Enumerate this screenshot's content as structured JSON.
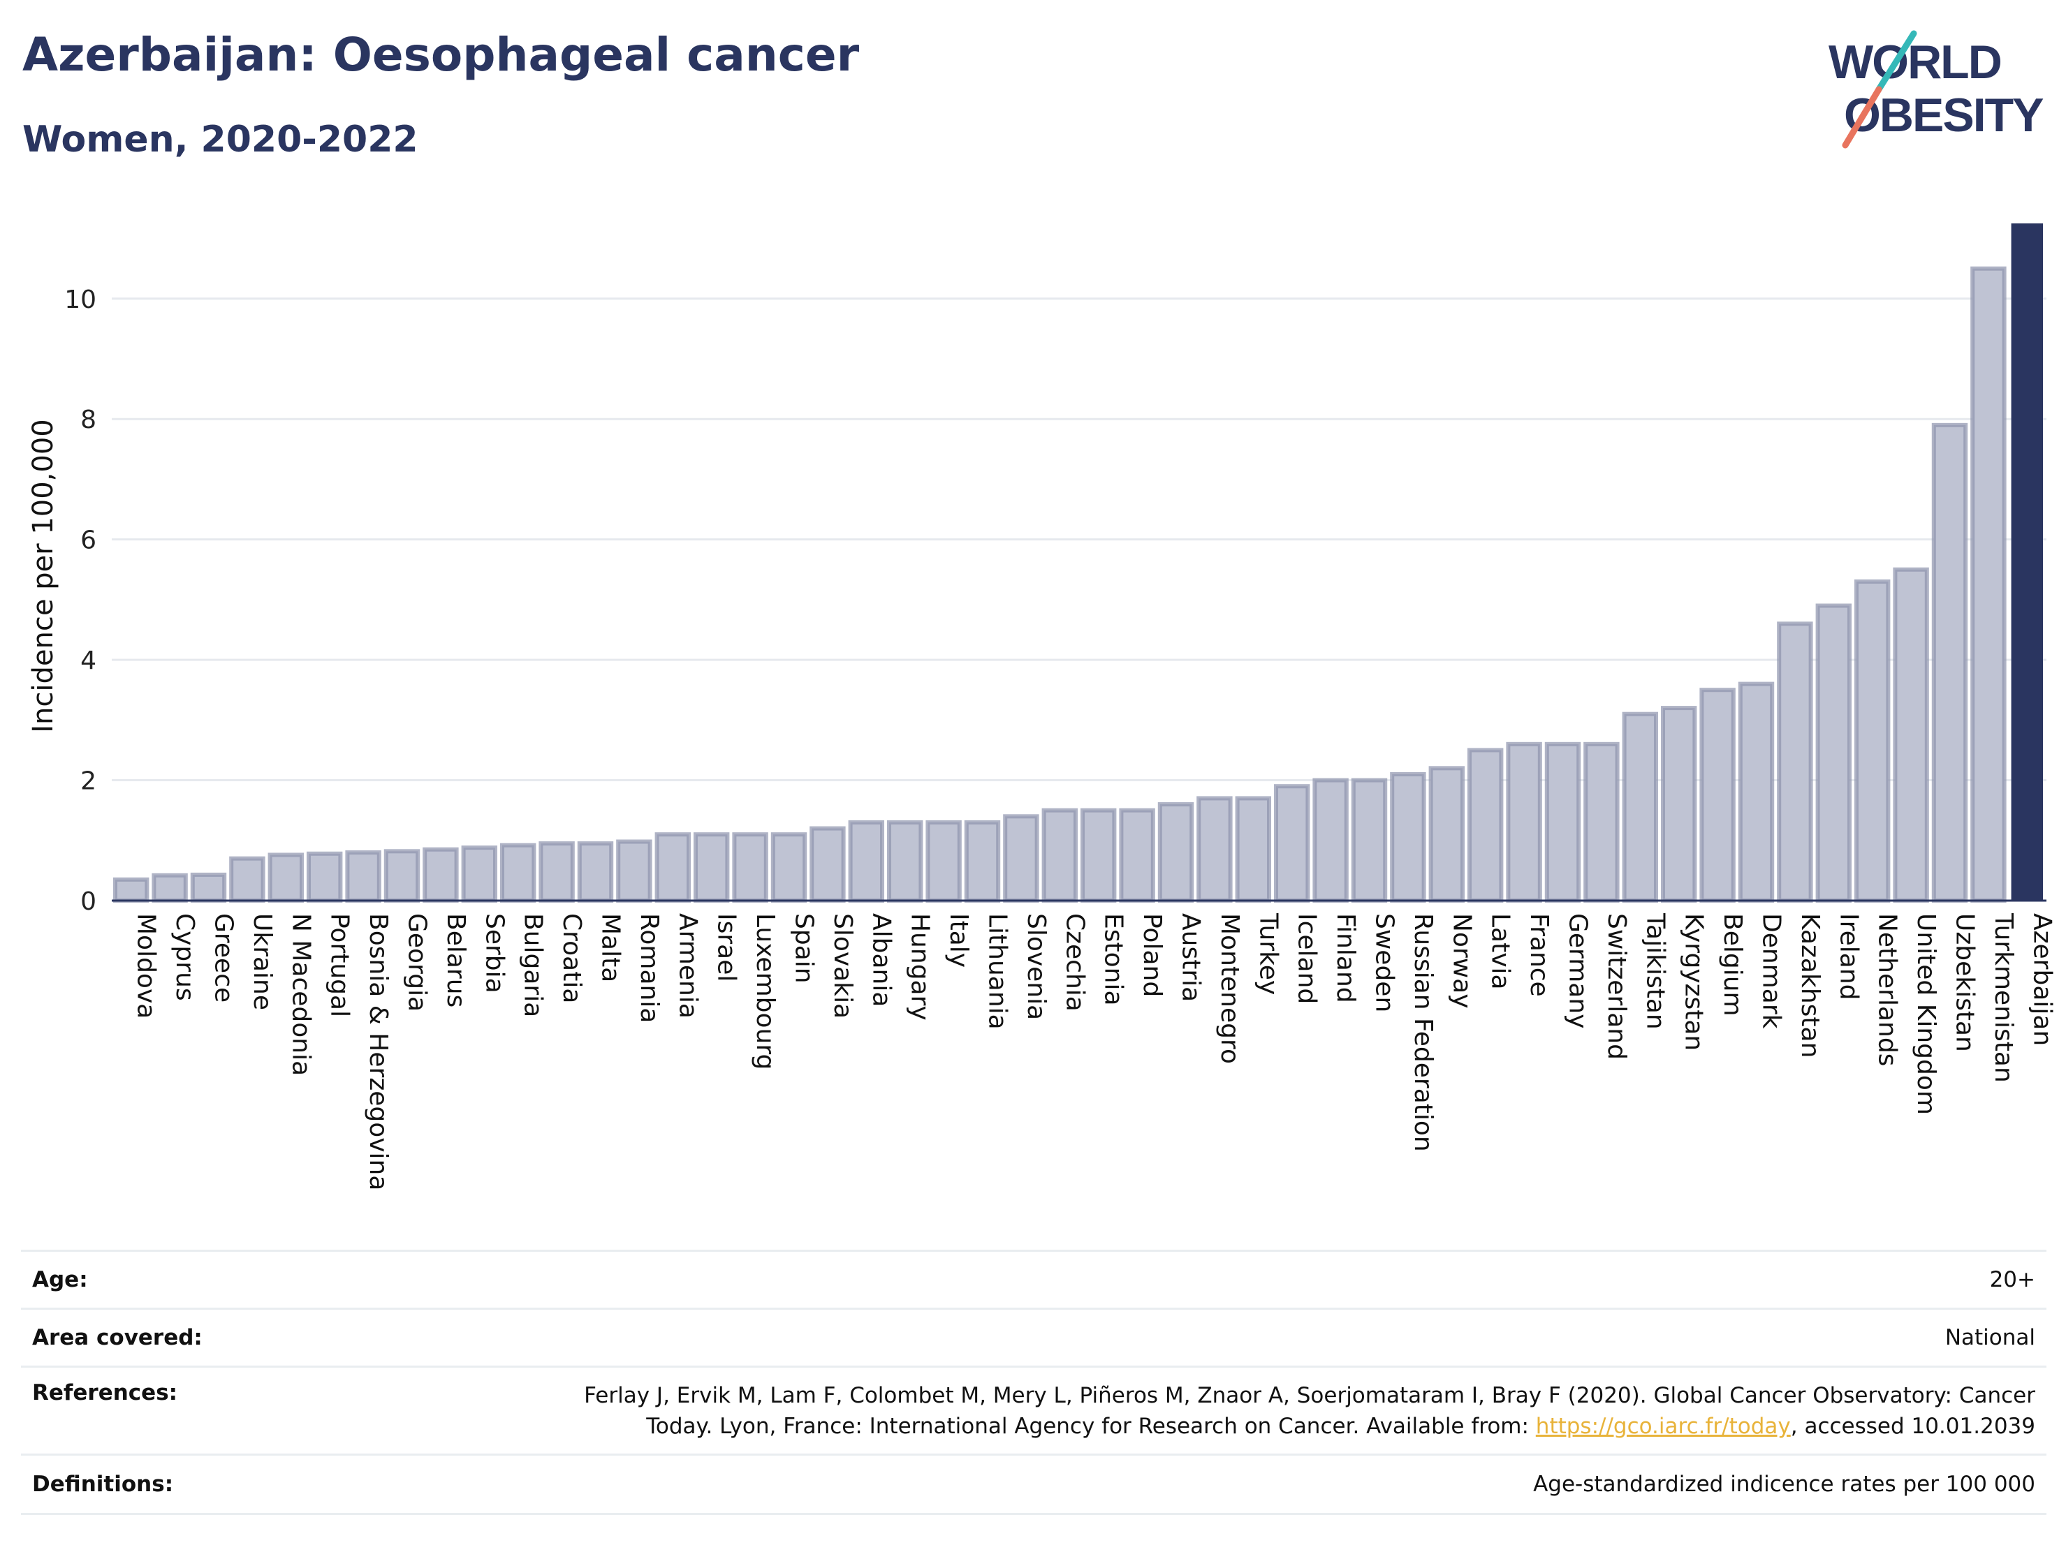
{
  "header": {
    "title": "Azerbaijan: Oesophageal cancer",
    "subtitle": "Women, 2020-2022"
  },
  "logo": {
    "line1": "WORLD",
    "line2": "OBESITY",
    "accent_teal": "#35b8b8",
    "accent_coral": "#e8745e"
  },
  "colors": {
    "bar": "#bfc3d3",
    "bar_stroke": "#8d93ac",
    "highlight": "#2a3560",
    "grid": "#e6e9ee"
  },
  "chart_data": {
    "type": "bar",
    "ylabel": "Incidence per 100,000",
    "ylim": [
      0,
      11.25
    ],
    "yticks": [
      0,
      2,
      4,
      6,
      8,
      10
    ],
    "grid": true,
    "highlight": "Azerbaijan",
    "categories": [
      "Moldova",
      "Cyprus",
      "Greece",
      "Ukraine",
      "N Macedonia",
      "Portugal",
      "Bosnia & Herzegovina",
      "Georgia",
      "Belarus",
      "Serbia",
      "Bulgaria",
      "Croatia",
      "Malta",
      "Romania",
      "Armenia",
      "Israel",
      "Luxembourg",
      "Spain",
      "Slovakia",
      "Albania",
      "Hungary",
      "Italy",
      "Lithuania",
      "Slovenia",
      "Czechia",
      "Estonia",
      "Poland",
      "Austria",
      "Montenegro",
      "Turkey",
      "Iceland",
      "Finland",
      "Sweden",
      "Russian Federation",
      "Norway",
      "Latvia",
      "France",
      "Germany",
      "Switzerland",
      "Tajikistan",
      "Kyrgyzstan",
      "Belgium",
      "Denmark",
      "Kazakhstan",
      "Ireland",
      "Netherlands",
      "United Kingdom",
      "Uzbekistan",
      "Turkmenistan",
      "Azerbaijan"
    ],
    "values": [
      0.35,
      0.42,
      0.43,
      0.7,
      0.76,
      0.78,
      0.8,
      0.82,
      0.85,
      0.88,
      0.92,
      0.95,
      0.95,
      0.98,
      1.1,
      1.1,
      1.1,
      1.1,
      1.2,
      1.3,
      1.3,
      1.3,
      1.3,
      1.4,
      1.5,
      1.5,
      1.5,
      1.6,
      1.7,
      1.7,
      1.9,
      2.0,
      2.0,
      2.1,
      2.2,
      2.5,
      2.6,
      2.6,
      2.6,
      3.1,
      3.2,
      3.5,
      3.6,
      4.6,
      4.9,
      5.3,
      5.5,
      7.9,
      10.5,
      11.25
    ]
  },
  "meta": {
    "age_label": "Age:",
    "age_value": "20+",
    "area_label": "Area covered:",
    "area_value": "National",
    "ref_label": "References:",
    "ref_line1": "Ferlay J, Ervik M, Lam F, Colombet M, Mery L, Piñeros M, Znaor A, Soerjomataram I, Bray F (2020). Global Cancer Observatory: Cancer",
    "ref_line2_pre": "Today. Lyon, France: International Agency for Research on Cancer. Available from: ",
    "ref_link": "https://gco.iarc.fr/today",
    "ref_line2_post": ", accessed 10.01.2039",
    "def_label": "Definitions:",
    "def_value": "Age-standardized indicence rates per 100 000"
  }
}
